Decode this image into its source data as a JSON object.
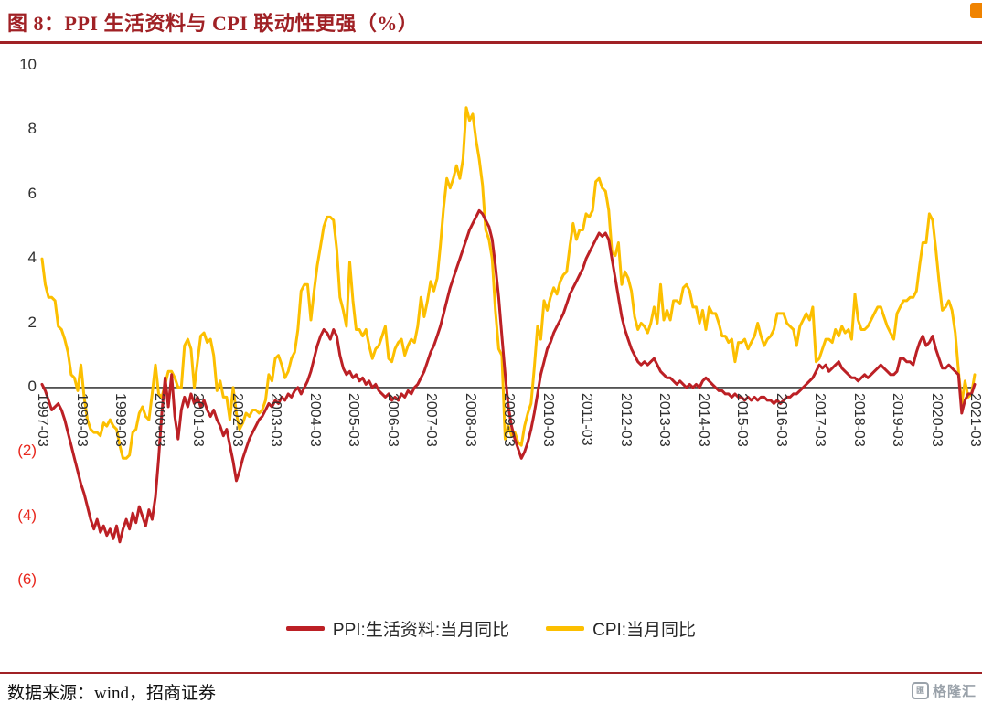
{
  "header": {
    "title": "图 8：PPI 生活资料与 CPI 联动性更强（%）"
  },
  "colors": {
    "title": "#a02125",
    "rule": "#a02125",
    "ppi_line": "#bc2025",
    "cpi_line": "#fcbf00",
    "zero_axis": "#1a1a1a",
    "negative_tick": "#e8281e",
    "axis_text": "#303030",
    "logo_gray": "#9aa2aa",
    "corner_orange": "#f08300"
  },
  "footer": {
    "source": "数据来源：wind，招商证券"
  },
  "logo": {
    "icon_char": "匯",
    "text": "格隆汇"
  },
  "chart_data": {
    "type": "line",
    "title": "图 8：PPI 生活资料与 CPI 联动性更强（%）",
    "x_unit": "month",
    "x_start": "1997-03",
    "x_end": "2021-03",
    "ylim": [
      -6,
      10
    ],
    "grid": false,
    "legend_position": "bottom-center",
    "y_ticks": [
      {
        "v": 10,
        "label": "10"
      },
      {
        "v": 8,
        "label": "8"
      },
      {
        "v": 6,
        "label": "6"
      },
      {
        "v": 4,
        "label": "4"
      },
      {
        "v": 2,
        "label": "2"
      },
      {
        "v": 0,
        "label": "0"
      },
      {
        "v": -2,
        "label": "(2)"
      },
      {
        "v": -4,
        "label": "(4)"
      },
      {
        "v": -6,
        "label": "(6)"
      }
    ],
    "x_ticks": [
      "1997-03",
      "1998-03",
      "1999-03",
      "2000-03",
      "2001-03",
      "2002-03",
      "2003-03",
      "2004-03",
      "2005-03",
      "2006-03",
      "2007-03",
      "2008-03",
      "2009-03",
      "2010-03",
      "2011-03",
      "2012-03",
      "2013-03",
      "2014-03",
      "2015-03",
      "2016-03",
      "2017-03",
      "2018-03",
      "2019-03",
      "2020-03",
      "2021-03"
    ],
    "series": [
      {
        "name": "PPI:生活资料:当月同比",
        "color": "#bc2025",
        "values": [
          0.1,
          -0.1,
          -0.4,
          -0.7,
          -0.6,
          -0.5,
          -0.7,
          -1.0,
          -1.4,
          -1.8,
          -2.2,
          -2.6,
          -3.0,
          -3.3,
          -3.7,
          -4.1,
          -4.4,
          -4.1,
          -4.5,
          -4.3,
          -4.6,
          -4.4,
          -4.7,
          -4.3,
          -4.8,
          -4.4,
          -4.1,
          -4.4,
          -3.9,
          -4.2,
          -3.7,
          -4.0,
          -4.3,
          -3.8,
          -4.1,
          -3.4,
          -2.2,
          -0.8,
          0.3,
          -0.6,
          0.4,
          -0.9,
          -1.6,
          -0.7,
          -0.3,
          -0.6,
          -0.2,
          -0.5,
          -0.3,
          -0.6,
          -0.4,
          -0.7,
          -0.9,
          -0.7,
          -1.0,
          -1.2,
          -1.5,
          -1.3,
          -1.8,
          -2.3,
          -2.9,
          -2.6,
          -2.2,
          -1.9,
          -1.6,
          -1.4,
          -1.2,
          -1.0,
          -0.9,
          -0.7,
          -0.5,
          -0.6,
          -0.4,
          -0.5,
          -0.3,
          -0.4,
          -0.2,
          -0.3,
          -0.1,
          0.0,
          -0.2,
          0.0,
          0.2,
          0.5,
          0.9,
          1.3,
          1.6,
          1.8,
          1.7,
          1.5,
          1.8,
          1.6,
          1.0,
          0.6,
          0.4,
          0.5,
          0.3,
          0.4,
          0.2,
          0.3,
          0.1,
          0.2,
          0.0,
          0.1,
          -0.1,
          -0.2,
          -0.3,
          -0.2,
          -0.4,
          -0.3,
          -0.4,
          -0.2,
          -0.3,
          -0.1,
          -0.2,
          0.0,
          0.1,
          0.3,
          0.5,
          0.8,
          1.1,
          1.3,
          1.6,
          1.9,
          2.3,
          2.7,
          3.1,
          3.4,
          3.7,
          4.0,
          4.3,
          4.6,
          4.9,
          5.1,
          5.3,
          5.5,
          5.4,
          5.2,
          5.0,
          4.6,
          3.8,
          2.8,
          1.6,
          0.4,
          -0.6,
          -1.2,
          -1.6,
          -1.9,
          -2.2,
          -2.0,
          -1.7,
          -1.3,
          -0.8,
          -0.2,
          0.4,
          0.8,
          1.2,
          1.4,
          1.7,
          1.9,
          2.1,
          2.3,
          2.6,
          2.9,
          3.1,
          3.3,
          3.5,
          3.7,
          4.0,
          4.2,
          4.4,
          4.6,
          4.8,
          4.7,
          4.8,
          4.6,
          4.0,
          3.4,
          2.8,
          2.2,
          1.8,
          1.5,
          1.2,
          1.0,
          0.8,
          0.7,
          0.8,
          0.7,
          0.8,
          0.9,
          0.7,
          0.5,
          0.4,
          0.3,
          0.3,
          0.2,
          0.1,
          0.2,
          0.1,
          0.0,
          0.1,
          0.0,
          0.1,
          0.0,
          0.2,
          0.3,
          0.2,
          0.1,
          0.0,
          -0.1,
          -0.1,
          -0.2,
          -0.2,
          -0.3,
          -0.2,
          -0.3,
          -0.3,
          -0.4,
          -0.3,
          -0.4,
          -0.3,
          -0.4,
          -0.3,
          -0.3,
          -0.4,
          -0.4,
          -0.5,
          -0.4,
          -0.5,
          -0.4,
          -0.3,
          -0.3,
          -0.2,
          -0.2,
          -0.1,
          0.0,
          0.1,
          0.2,
          0.3,
          0.5,
          0.7,
          0.6,
          0.7,
          0.5,
          0.6,
          0.7,
          0.8,
          0.6,
          0.5,
          0.4,
          0.3,
          0.3,
          0.2,
          0.3,
          0.4,
          0.3,
          0.4,
          0.5,
          0.6,
          0.7,
          0.6,
          0.5,
          0.4,
          0.4,
          0.5,
          0.9,
          0.9,
          0.8,
          0.8,
          0.7,
          1.1,
          1.4,
          1.6,
          1.3,
          1.4,
          1.6,
          1.2,
          0.9,
          0.6,
          0.6,
          0.7,
          0.6,
          0.5,
          0.4,
          -0.8,
          -0.4,
          -0.2,
          -0.2,
          0.1
        ]
      },
      {
        "name": "CPI:当月同比",
        "color": "#fcbf00",
        "values": [
          4.0,
          3.2,
          2.8,
          2.8,
          2.7,
          1.9,
          1.8,
          1.5,
          1.1,
          0.4,
          0.3,
          -0.1,
          0.7,
          -0.3,
          -1.0,
          -1.3,
          -1.4,
          -1.4,
          -1.5,
          -1.1,
          -1.2,
          -1.0,
          -1.2,
          -1.3,
          -1.8,
          -2.2,
          -2.2,
          -2.1,
          -1.4,
          -1.3,
          -0.8,
          -0.6,
          -0.9,
          -1.0,
          -0.2,
          0.7,
          -0.2,
          -0.3,
          0.1,
          0.5,
          0.5,
          0.3,
          0.0,
          0.0,
          1.3,
          1.5,
          1.2,
          0.0,
          0.8,
          1.6,
          1.7,
          1.4,
          1.5,
          1.0,
          -0.1,
          0.2,
          -0.3,
          -0.3,
          -1.0,
          0.0,
          -0.8,
          -1.3,
          -1.1,
          -0.8,
          -0.9,
          -0.7,
          -0.7,
          -0.8,
          -0.7,
          -0.4,
          0.4,
          0.2,
          0.9,
          1.0,
          0.7,
          0.3,
          0.5,
          0.9,
          1.1,
          1.8,
          3.0,
          3.2,
          3.2,
          2.1,
          3.0,
          3.8,
          4.4,
          5.0,
          5.3,
          5.3,
          5.2,
          4.3,
          2.8,
          2.4,
          1.9,
          3.9,
          2.7,
          1.8,
          1.8,
          1.6,
          1.8,
          1.3,
          0.9,
          1.2,
          1.3,
          1.6,
          1.9,
          0.9,
          0.8,
          1.2,
          1.4,
          1.5,
          1.0,
          1.3,
          1.5,
          1.4,
          1.9,
          2.8,
          2.2,
          2.7,
          3.3,
          3.0,
          3.4,
          4.4,
          5.6,
          6.5,
          6.2,
          6.5,
          6.9,
          6.5,
          7.1,
          8.7,
          8.3,
          8.5,
          7.7,
          7.1,
          6.3,
          4.9,
          4.6,
          4.0,
          2.4,
          1.2,
          1.0,
          -1.6,
          -1.2,
          -1.5,
          -1.4,
          -1.7,
          -1.8,
          -1.2,
          -0.8,
          -0.5,
          0.6,
          1.9,
          1.5,
          2.7,
          2.4,
          2.8,
          3.1,
          2.9,
          3.3,
          3.5,
          3.6,
          4.4,
          5.1,
          4.6,
          4.9,
          4.9,
          5.4,
          5.3,
          5.5,
          6.4,
          6.5,
          6.2,
          6.1,
          5.5,
          4.2,
          4.1,
          4.5,
          3.2,
          3.6,
          3.4,
          3.0,
          2.2,
          1.8,
          2.0,
          1.9,
          1.7,
          2.0,
          2.5,
          2.0,
          3.2,
          2.1,
          2.4,
          2.1,
          2.7,
          2.7,
          2.6,
          3.1,
          3.2,
          3.0,
          2.5,
          2.5,
          2.0,
          2.4,
          1.8,
          2.5,
          2.3,
          2.3,
          2.0,
          1.6,
          1.6,
          1.4,
          1.5,
          0.8,
          1.4,
          1.4,
          1.5,
          1.2,
          1.4,
          1.6,
          2.0,
          1.6,
          1.3,
          1.5,
          1.6,
          1.8,
          2.3,
          2.3,
          2.3,
          2.0,
          1.9,
          1.8,
          1.3,
          1.9,
          2.1,
          2.3,
          2.1,
          2.5,
          0.8,
          0.9,
          1.2,
          1.5,
          1.5,
          1.4,
          1.8,
          1.6,
          1.9,
          1.7,
          1.8,
          1.5,
          2.9,
          2.1,
          1.8,
          1.8,
          1.9,
          2.1,
          2.3,
          2.5,
          2.5,
          2.2,
          1.9,
          1.7,
          1.5,
          2.3,
          2.5,
          2.7,
          2.7,
          2.8,
          2.8,
          3.0,
          3.8,
          4.5,
          4.5,
          5.4,
          5.2,
          4.3,
          3.3,
          2.4,
          2.5,
          2.7,
          2.4,
          1.7,
          0.5,
          -0.5,
          0.2,
          -0.3,
          -0.2,
          0.4
        ]
      }
    ]
  }
}
